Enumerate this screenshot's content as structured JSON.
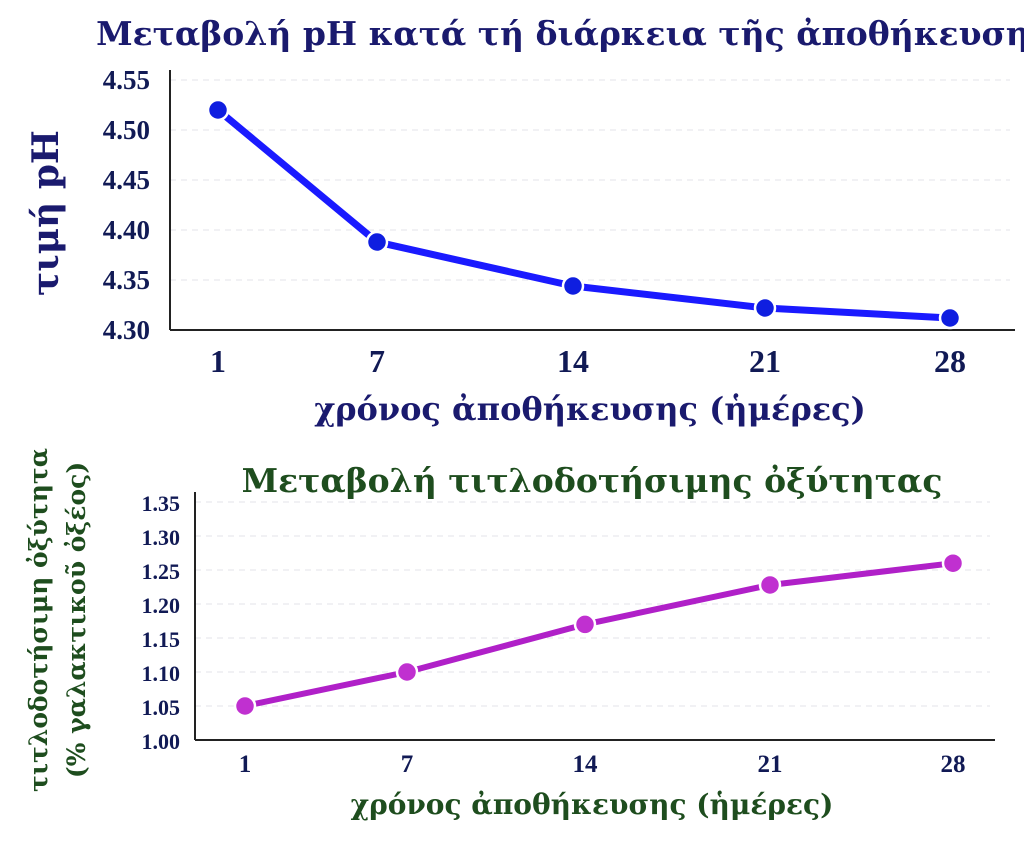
{
  "chart_data": [
    {
      "type": "line",
      "title": "Μεταβολή pH κατά τή διάρκεια τῆς ἀποθήκευσης",
      "xlabel": "χρόνος ἀποθήκευσης (ἡμέρες)",
      "ylabel": "τιμή pH",
      "categories": [
        "1",
        "7",
        "14",
        "21",
        "28"
      ],
      "y_ticks": [
        "4.30",
        "4.35",
        "4.40",
        "4.45",
        "4.50",
        "4.55"
      ],
      "ylim": [
        4.3,
        4.55
      ],
      "grid": true,
      "series": [
        {
          "values": [
            4.52,
            4.388,
            4.344,
            4.322,
            4.312
          ],
          "color": "#1a1aff",
          "marker_color": "#0f1ee0"
        }
      ]
    },
    {
      "type": "line",
      "title": "Μεταβολή τιτλοδοτήσιμης ὀξύτητας",
      "xlabel": "χρόνος ἀποθήκευσης (ἡμέρες)",
      "ylabel": [
        "τιτλοδοτήσιμη ὀξύτητα",
        "(% γαλακτικοῦ ὀξέος)"
      ],
      "categories": [
        "1",
        "7",
        "14",
        "21",
        "28"
      ],
      "y_ticks": [
        "1.00",
        "1.05",
        "1.10",
        "1.15",
        "1.20",
        "1.25",
        "1.30",
        "1.35"
      ],
      "ylim": [
        1.0,
        1.35
      ],
      "grid": true,
      "series": [
        {
          "values": [
            1.05,
            1.1,
            1.17,
            1.228,
            1.26
          ],
          "color": "#b020c8",
          "marker_color": "#c030d0"
        }
      ]
    }
  ]
}
